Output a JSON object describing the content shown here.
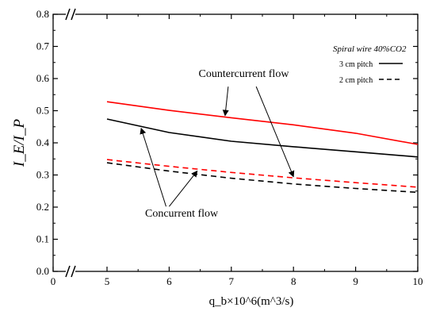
{
  "chart_data": {
    "type": "line",
    "xlabel": "q_b×10^6(m^3/s)",
    "ylabel": "I_E/I_P",
    "xlim": [
      0,
      10
    ],
    "ylim": [
      0.0,
      0.8
    ],
    "x_broken_axis": true,
    "y_broken_axis": true,
    "xticks": [
      0,
      5,
      6,
      7,
      8,
      9,
      10
    ],
    "xtick_labels": [
      "0",
      "5",
      "6",
      "7",
      "8",
      "9",
      "10"
    ],
    "yticks": [
      0.0,
      0.1,
      0.2,
      0.3,
      0.4,
      0.5,
      0.6,
      0.7,
      0.8
    ],
    "ytick_labels": [
      "0.0",
      "0.1",
      "0.2",
      "0.3",
      "0.4",
      "0.5",
      "0.6",
      "0.7",
      "0.8"
    ],
    "grid": false,
    "legend": {
      "placement": "top-right",
      "title": "Spiral wire  40%CO2",
      "items": [
        {
          "label": "3 cm pitch",
          "style": "solid"
        },
        {
          "label": "2 cm pitch",
          "style": "dashed"
        }
      ]
    },
    "series": [
      {
        "id": "counter-3cm",
        "color": "#ff0000",
        "style": "solid",
        "x": [
          5,
          6,
          7,
          8,
          9,
          10
        ],
        "y": [
          0.528,
          0.501,
          0.478,
          0.456,
          0.43,
          0.395
        ]
      },
      {
        "id": "concur-3cm",
        "color": "#000000",
        "style": "solid",
        "x": [
          5,
          6,
          7,
          8,
          9,
          10
        ],
        "y": [
          0.474,
          0.432,
          0.405,
          0.388,
          0.372,
          0.356
        ]
      },
      {
        "id": "counter-2cm",
        "color": "#ff0000",
        "style": "dashed",
        "x": [
          5,
          6,
          7,
          8,
          9,
          10
        ],
        "y": [
          0.348,
          0.327,
          0.308,
          0.291,
          0.276,
          0.262
        ]
      },
      {
        "id": "concur-2cm",
        "color": "#000000",
        "style": "dashed",
        "x": [
          5,
          6,
          7,
          8,
          9,
          10
        ],
        "y": [
          0.338,
          0.312,
          0.29,
          0.272,
          0.258,
          0.246
        ]
      }
    ],
    "annotations": [
      {
        "text": "Countercurrent flow",
        "tx": 7.2,
        "ty": 0.605,
        "arrows": [
          {
            "sx": 6.95,
            "sy": 0.575,
            "ex": 6.9,
            "ey": 0.485
          },
          {
            "sx": 7.4,
            "sy": 0.575,
            "ex": 8.0,
            "ey": 0.295
          }
        ]
      },
      {
        "text": "Concurrent flow",
        "tx": 6.2,
        "ty": 0.17,
        "arrows": [
          {
            "sx": 5.95,
            "sy": 0.202,
            "ex": 5.55,
            "ey": 0.445
          },
          {
            "sx": 6.0,
            "sy": 0.202,
            "ex": 6.45,
            "ey": 0.312
          }
        ]
      }
    ],
    "colors": {
      "axis": "#000000",
      "red": "#ff0000",
      "black": "#000000"
    }
  }
}
